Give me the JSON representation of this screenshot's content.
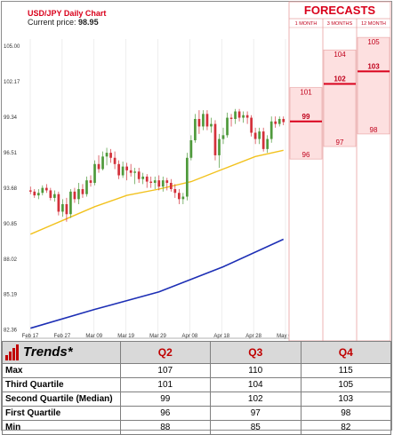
{
  "chart_data": {
    "type": "candlestick-with-moving-averages",
    "title": "USD/JPY Daily Chart",
    "current_price_label": "Current price:",
    "current_price": "98.95",
    "y_ticks": [
      "105.00",
      "102.17",
      "99.34",
      "96.51",
      "93.68",
      "90.85",
      "88.02",
      "85.19",
      "82.36"
    ],
    "y_tick_values": [
      105.0,
      102.17,
      99.34,
      96.51,
      93.68,
      90.85,
      88.02,
      85.19,
      82.36
    ],
    "ylim": [
      81.7,
      106.0
    ],
    "x_ticks": [
      "Feb 17",
      "Feb 27",
      "Mar 09",
      "Mar 19",
      "Mar 29",
      "Apr 08",
      "Apr 18",
      "Apr 28",
      "May 08"
    ],
    "grid": "vertical",
    "candles": [
      [
        93.5,
        93.4,
        93.8,
        93.2
      ],
      [
        93.4,
        93.1,
        93.6,
        92.9
      ],
      [
        93.1,
        93.3,
        93.6,
        92.8
      ],
      [
        93.3,
        93.7,
        93.9,
        93.1
      ],
      [
        93.7,
        93.5,
        94.0,
        93.3
      ],
      [
        93.5,
        92.9,
        93.7,
        92.7
      ],
      [
        92.9,
        93.2,
        93.5,
        92.6
      ],
      [
        93.2,
        91.8,
        93.4,
        91.5
      ],
      [
        91.8,
        92.4,
        92.8,
        91.4
      ],
      [
        92.4,
        91.6,
        92.9,
        91.0
      ],
      [
        91.6,
        93.4,
        93.6,
        91.3
      ],
      [
        93.4,
        92.8,
        93.7,
        92.5
      ],
      [
        92.8,
        93.6,
        94.1,
        92.4
      ],
      [
        93.6,
        93.2,
        94.0,
        92.9
      ],
      [
        93.2,
        94.3,
        94.6,
        93.0
      ],
      [
        94.3,
        94.1,
        94.7,
        93.8
      ],
      [
        94.1,
        95.6,
        95.9,
        93.9
      ],
      [
        95.6,
        95.2,
        96.3,
        94.9
      ],
      [
        95.2,
        96.2,
        96.6,
        95.1
      ],
      [
        96.2,
        96.5,
        96.9,
        95.5
      ],
      [
        96.5,
        96.1,
        96.8,
        95.7
      ],
      [
        96.1,
        95.6,
        96.6,
        95.2
      ],
      [
        95.6,
        94.7,
        95.9,
        94.4
      ],
      [
        94.7,
        95.4,
        95.8,
        94.5
      ],
      [
        95.4,
        95.1,
        95.7,
        94.3
      ],
      [
        95.1,
        94.9,
        95.6,
        94.6
      ],
      [
        94.9,
        95.0,
        95.3,
        94.0
      ],
      [
        95.0,
        94.4,
        95.3,
        94.1
      ],
      [
        94.4,
        94.6,
        94.9,
        94.0
      ],
      [
        94.6,
        94.2,
        94.8,
        93.7
      ],
      [
        94.2,
        94.1,
        94.6,
        93.7
      ],
      [
        94.1,
        94.3,
        94.6,
        93.6
      ],
      [
        94.3,
        93.8,
        94.7,
        93.5
      ],
      [
        93.8,
        94.3,
        94.6,
        93.4
      ],
      [
        94.3,
        94.1,
        94.5,
        93.5
      ],
      [
        94.1,
        93.6,
        94.4,
        93.4
      ],
      [
        93.6,
        93.3,
        94.0,
        92.9
      ],
      [
        93.3,
        92.8,
        93.6,
        92.4
      ],
      [
        92.8,
        93.0,
        93.3,
        92.4
      ],
      [
        93.0,
        96.1,
        96.5,
        92.7
      ],
      [
        96.1,
        97.5,
        97.9,
        95.9
      ],
      [
        97.5,
        99.2,
        99.6,
        97.3
      ],
      [
        99.2,
        98.6,
        99.9,
        98.0
      ],
      [
        98.6,
        99.6,
        99.9,
        98.3
      ],
      [
        99.6,
        98.6,
        99.9,
        98.3
      ],
      [
        98.6,
        98.8,
        99.3,
        98.1
      ],
      [
        98.8,
        96.3,
        99.1,
        95.9
      ],
      [
        96.3,
        97.6,
        98.0,
        95.3
      ],
      [
        97.6,
        97.9,
        98.5,
        97.2
      ],
      [
        97.9,
        99.3,
        99.7,
        97.7
      ],
      [
        99.3,
        99.2,
        99.6,
        98.6
      ],
      [
        99.2,
        99.8,
        100.0,
        98.8
      ],
      [
        99.8,
        99.3,
        100.0,
        99.0
      ],
      [
        99.3,
        99.5,
        99.8,
        98.9
      ],
      [
        99.5,
        99.3,
        99.8,
        98.8
      ],
      [
        99.3,
        98.1,
        99.5,
        97.8
      ],
      [
        98.1,
        97.6,
        98.5,
        97.2
      ],
      [
        97.6,
        98.2,
        98.5,
        97.2
      ],
      [
        98.2,
        96.8,
        98.5,
        96.6
      ],
      [
        96.8,
        97.6,
        97.9,
        96.5
      ],
      [
        97.6,
        99.0,
        99.4,
        97.3
      ],
      [
        99.0,
        98.8,
        99.4,
        98.5
      ],
      [
        98.8,
        99.2,
        99.4,
        98.6
      ],
      [
        99.2,
        98.95,
        99.4,
        98.7
      ]
    ],
    "ma_short": [
      [
        0,
        90.0
      ],
      [
        8,
        91.1
      ],
      [
        16,
        92.2
      ],
      [
        24,
        93.1
      ],
      [
        32,
        93.6
      ],
      [
        40,
        94.2
      ],
      [
        48,
        95.2
      ],
      [
        56,
        96.2
      ],
      [
        63,
        96.7
      ]
    ],
    "ma_long": [
      [
        0,
        82.5
      ],
      [
        16,
        84.0
      ],
      [
        32,
        85.4
      ],
      [
        48,
        87.4
      ],
      [
        63,
        89.6
      ]
    ]
  },
  "forecasts": {
    "title": "FORECASTS",
    "columns": [
      {
        "label": "1 MONTH",
        "high": "101",
        "median": "99",
        "low": "96"
      },
      {
        "label": "3 MONTHS",
        "high": "104",
        "median": "102",
        "low": "97"
      },
      {
        "label": "12 MONTH",
        "high": "105",
        "median": "103",
        "low": "98"
      }
    ],
    "colors": {
      "band": "#fde0e0",
      "border": "#e8a0a0",
      "accent": "#d9001b"
    }
  },
  "trends": {
    "title": "Trends*",
    "columns": [
      "Q2",
      "Q3",
      "Q4"
    ],
    "rows": [
      {
        "label": "Max",
        "values": [
          "107",
          "110",
          "115"
        ]
      },
      {
        "label": "Third Quartile",
        "values": [
          "101",
          "104",
          "105"
        ]
      },
      {
        "label": "Second Quartile (Median)",
        "values": [
          "99",
          "102",
          "103"
        ]
      },
      {
        "label": "First Quartile",
        "values": [
          "96",
          "97",
          "98"
        ]
      },
      {
        "label": "Min",
        "values": [
          "88",
          "85",
          "82"
        ]
      }
    ]
  },
  "colors": {
    "up": "#4f9a3c",
    "down": "#d3303a",
    "ma_short": "#f2c21e",
    "ma_long": "#1d2fb5",
    "header": "#d9d9d9",
    "accent": "#c00000"
  }
}
